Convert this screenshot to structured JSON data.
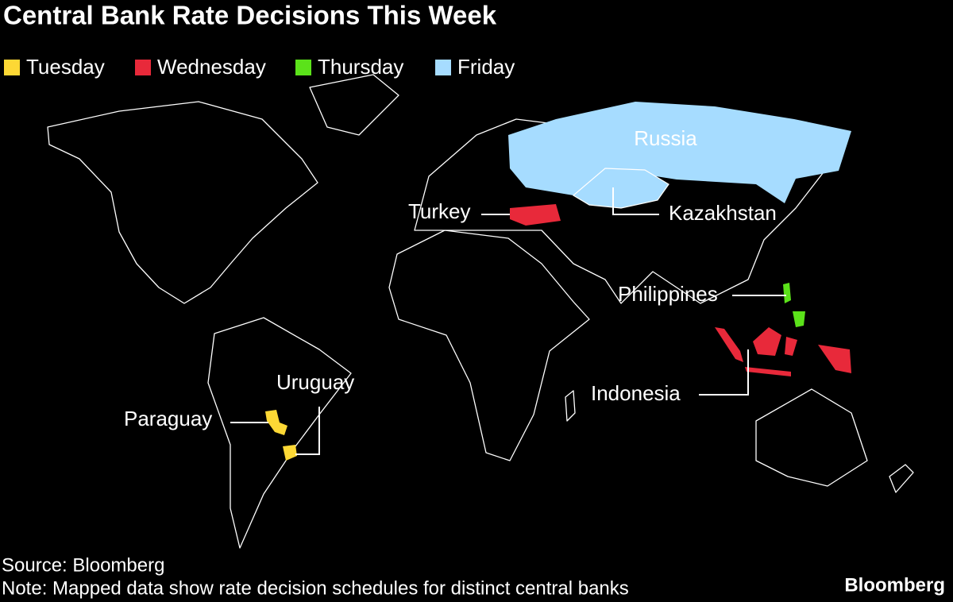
{
  "title": "Central Bank Rate Decisions This Week",
  "legend": [
    {
      "label": "Tuesday",
      "color": "#fdd835"
    },
    {
      "label": "Wednesday",
      "color": "#e8293a"
    },
    {
      "label": "Thursday",
      "color": "#5be21a"
    },
    {
      "label": "Friday",
      "color": "#a6dcff"
    }
  ],
  "countries": [
    {
      "name": "Russia",
      "color": "#a6dcff"
    },
    {
      "name": "Kazakhstan",
      "color": "#a6dcff"
    },
    {
      "name": "Turkey",
      "color": "#e8293a"
    },
    {
      "name": "Philippines",
      "color": "#5be21a"
    },
    {
      "name": "Indonesia",
      "color": "#e8293a"
    },
    {
      "name": "Uruguay",
      "color": "#fdd835"
    },
    {
      "name": "Paraguay",
      "color": "#fdd835"
    }
  ],
  "source": "Source: Bloomberg",
  "note": "Note: Mapped data show rate decision schedules for distinct central banks",
  "brand": "Bloomberg"
}
